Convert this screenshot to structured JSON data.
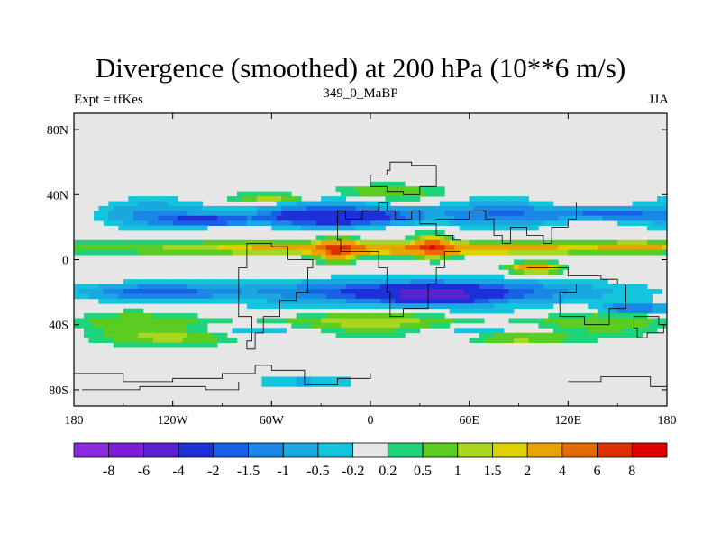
{
  "chart_data": {
    "type": "heatmap",
    "title": "Divergence (smoothed) at 200 hPa (10**6 m/s)",
    "subtitle_left": "Expt = tfKes",
    "subtitle_center": "349_0_MaBP",
    "subtitle_right": "JJA",
    "x_ticks": [
      "180",
      "120W",
      "60W",
      "0",
      "60E",
      "120E",
      "180"
    ],
    "x_tick_values": [
      -180,
      -120,
      -60,
      0,
      60,
      120,
      180
    ],
    "y_ticks": [
      "80N",
      "40N",
      "0",
      "40S",
      "80S"
    ],
    "y_tick_values": [
      80,
      40,
      0,
      -40,
      -80
    ],
    "xlim": [
      -180,
      180
    ],
    "ylim": [
      -90,
      90
    ],
    "colorbar": {
      "labels": [
        "-8",
        "-6",
        "-4",
        "-2",
        "-1.5",
        "-1",
        "-0.5",
        "-0.2",
        "0.2",
        "0.5",
        "1",
        "1.5",
        "2",
        "4",
        "6",
        "8"
      ],
      "colors": [
        "#8a2be2",
        "#7a1fd6",
        "#5a22d0",
        "#1f2fd8",
        "#1860e6",
        "#1a86e6",
        "#19a8df",
        "#13c4dc",
        "#e6e6e6",
        "#1ed37a",
        "#5bcc22",
        "#a9d61f",
        "#dcd200",
        "#e8a300",
        "#e66a00",
        "#dd3000",
        "#e00000"
      ]
    },
    "features": [
      {
        "lon": 0,
        "lat": 28,
        "w": 360,
        "h": 14,
        "v": -1.2
      },
      {
        "lon": -20,
        "lat": 26,
        "w": 90,
        "h": 9,
        "v": -2.5
      },
      {
        "lon": -100,
        "lat": 24,
        "w": 60,
        "h": 6,
        "v": -2.2
      },
      {
        "lon": 140,
        "lat": 28,
        "w": 80,
        "h": 8,
        "v": -1.5
      },
      {
        "lon": 0,
        "lat": 7,
        "w": 360,
        "h": 8,
        "v": 1.6
      },
      {
        "lon": 30,
        "lat": 7,
        "w": 200,
        "h": 6,
        "v": 2.4
      },
      {
        "lon": -20,
        "lat": 6,
        "w": 22,
        "h": 12,
        "v": 5.0
      },
      {
        "lon": 38,
        "lat": 8,
        "w": 20,
        "h": 12,
        "v": 4.5
      },
      {
        "lon": 100,
        "lat": -5,
        "w": 28,
        "h": 6,
        "v": 3.5
      },
      {
        "lon": 160,
        "lat": 8,
        "w": 40,
        "h": 5,
        "v": 3.0
      },
      {
        "lon": 30,
        "lat": -20,
        "w": 200,
        "h": 14,
        "v": -2.6
      },
      {
        "lon": -130,
        "lat": -20,
        "w": 90,
        "h": 10,
        "v": -1.8
      },
      {
        "lon": 40,
        "lat": -22,
        "w": 60,
        "h": 10,
        "v": -3.5
      },
      {
        "lon": 0,
        "lat": -38,
        "w": 360,
        "h": 8,
        "v": 0.9
      },
      {
        "lon": -120,
        "lat": -48,
        "w": 80,
        "h": 10,
        "v": 1.1
      },
      {
        "lon": 90,
        "lat": -48,
        "w": 60,
        "h": 7,
        "v": 1.4
      },
      {
        "lon": 10,
        "lat": 42,
        "w": 60,
        "h": 8,
        "v": 1.0
      },
      {
        "lon": -60,
        "lat": 38,
        "w": 40,
        "h": 5,
        "v": 1.3
      },
      {
        "lon": 160,
        "lat": -30,
        "w": 40,
        "h": 6,
        "v": -2.0
      },
      {
        "lon": -40,
        "lat": -75,
        "w": 60,
        "h": 6,
        "v": -0.7
      }
    ]
  }
}
